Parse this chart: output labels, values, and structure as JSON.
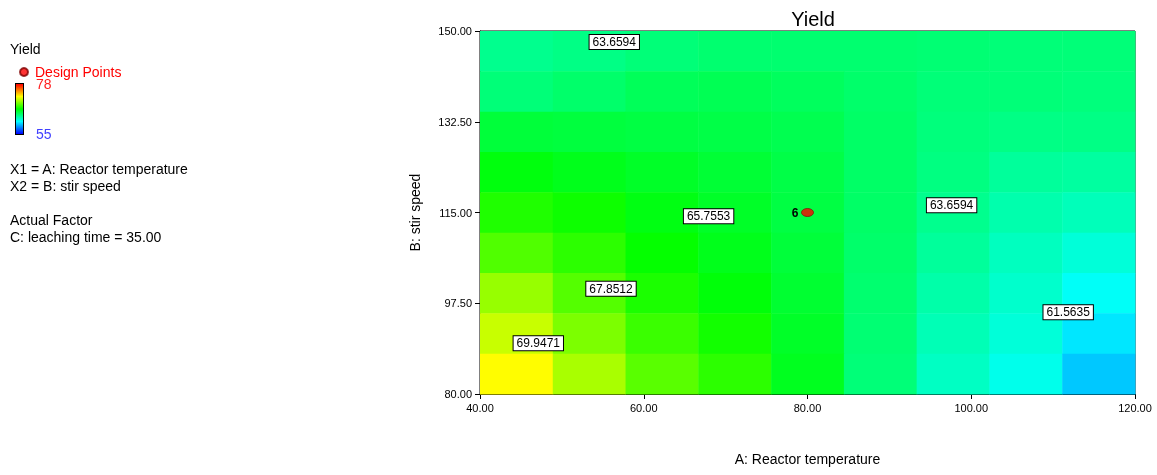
{
  "chart_data": {
    "type": "heatmap",
    "title": "Yield",
    "xlabel": "A: Reactor temperature",
    "ylabel": "B: stir speed",
    "clabel": "Yield",
    "cells": [
      [
        63.3,
        63.5,
        63.8,
        64.0,
        64.0,
        64.0,
        63.9,
        63.8,
        63.8
      ],
      [
        63.8,
        64.1,
        64.5,
        64.6,
        64.4,
        64.1,
        63.8,
        63.8,
        63.7
      ],
      [
        65.2,
        65.1,
        65.0,
        64.9,
        64.7,
        64.2,
        63.7,
        63.5,
        63.5
      ],
      [
        66.2,
        65.9,
        65.6,
        65.3,
        64.9,
        64.2,
        63.6,
        63.0,
        62.9
      ],
      [
        67.2,
        66.8,
        66.1,
        65.6,
        65.0,
        64.2,
        63.3,
        62.6,
        62.3
      ],
      [
        68.3,
        67.5,
        66.6,
        65.9,
        65.2,
        64.1,
        63.0,
        62.2,
        61.6
      ],
      [
        69.9,
        68.4,
        67.1,
        66.3,
        65.4,
        64.0,
        62.7,
        61.9,
        60.9
      ],
      [
        71.0,
        69.3,
        67.8,
        66.9,
        65.6,
        63.9,
        62.4,
        61.6,
        60.2
      ],
      [
        72.3,
        70.3,
        68.5,
        67.5,
        65.8,
        63.8,
        62.1,
        61.2,
        59.5
      ]
    ],
    "clim": [
      55,
      78
    ],
    "cticks": [
      55,
      78
    ],
    "xlim": [
      40,
      120
    ],
    "xticks": [
      {
        "value": 40,
        "label": "40.00"
      },
      {
        "value": 60,
        "label": "60.00"
      },
      {
        "value": 80,
        "label": "80.00"
      },
      {
        "value": 100,
        "label": "100.00"
      },
      {
        "value": 120,
        "label": "120.00"
      }
    ],
    "ylim": [
      80,
      150
    ],
    "yticks": [
      {
        "value": 80,
        "label": "80.00"
      },
      {
        "value": 97.5,
        "label": "97.50"
      },
      {
        "value": 115,
        "label": "115.00"
      },
      {
        "value": 132.5,
        "label": "132.50"
      },
      {
        "value": 150,
        "label": "150.00"
      }
    ],
    "series": [
      {
        "name": "Design Points",
        "type": "scatter",
        "color": "#ff0000",
        "x": [
          80
        ],
        "values": [
          115
        ]
      }
    ],
    "marker": "circle",
    "legend": "left",
    "annotations": [
      "X1 = A: Reactor temperature",
      "X2 = B: stir speed",
      "Actual Factor",
      "C: leaching time = 35.00",
      {
        "text": "6",
        "x": 80,
        "y": 115
      },
      "63.6594",
      "65.7553",
      "63.6594",
      "67.8512",
      "69.9471",
      "61.5635"
    ]
  }
}
